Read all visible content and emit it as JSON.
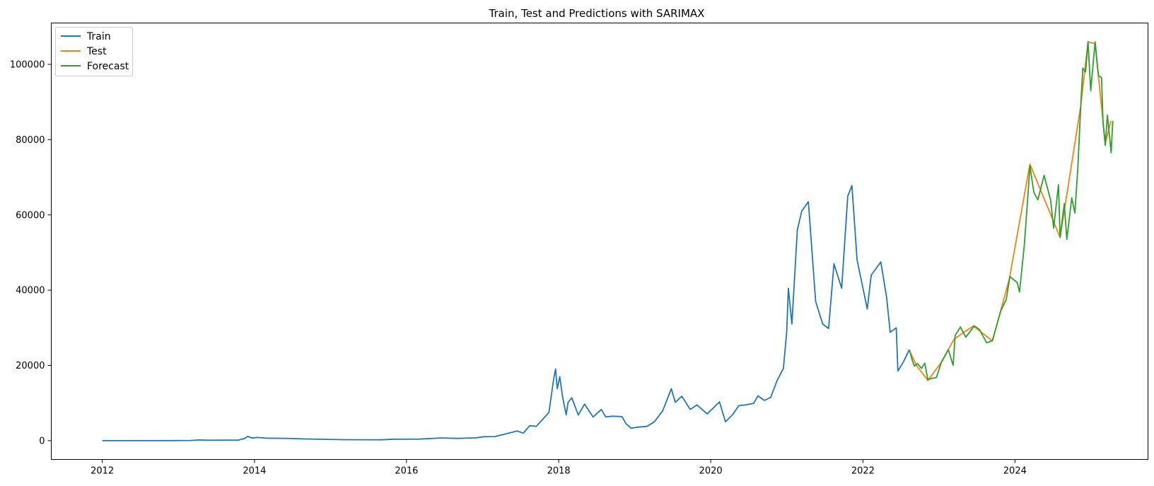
{
  "chart_data": {
    "type": "line",
    "title": "Train, Test and Predictions with SARIMAX",
    "xlabel": "",
    "ylabel": "",
    "xlim": [
      "2011-05-01",
      "2025-10-01"
    ],
    "ylim": [
      -5000,
      111000
    ],
    "x_ticks": [
      "2012",
      "2014",
      "2016",
      "2018",
      "2020",
      "2022",
      "2024"
    ],
    "y_ticks": [
      "0",
      "20000",
      "40000",
      "60000",
      "80000",
      "100000"
    ],
    "legend": {
      "position": "top-left",
      "entries": [
        "Train",
        "Test",
        "Forecast"
      ]
    },
    "grid": false,
    "series": [
      {
        "name": "Train",
        "color": "#1f77b4",
        "points": [
          [
            "2012-01-01",
            5
          ],
          [
            "2012-06-01",
            6
          ],
          [
            "2012-12-01",
            13
          ],
          [
            "2013-03-01",
            50
          ],
          [
            "2013-04-10",
            180
          ],
          [
            "2013-06-01",
            110
          ],
          [
            "2013-09-01",
            130
          ],
          [
            "2013-10-15",
            150
          ],
          [
            "2013-11-15",
            600
          ],
          [
            "2013-11-30",
            1150
          ],
          [
            "2013-12-20",
            700
          ],
          [
            "2014-01-15",
            850
          ],
          [
            "2014-03-01",
            650
          ],
          [
            "2014-06-01",
            620
          ],
          [
            "2014-09-01",
            450
          ],
          [
            "2014-12-01",
            350
          ],
          [
            "2015-03-01",
            260
          ],
          [
            "2015-06-01",
            240
          ],
          [
            "2015-09-01",
            230
          ],
          [
            "2015-11-05",
            400
          ],
          [
            "2015-12-01",
            380
          ],
          [
            "2016-03-01",
            420
          ],
          [
            "2016-06-15",
            720
          ],
          [
            "2016-09-01",
            600
          ],
          [
            "2016-12-01",
            760
          ],
          [
            "2017-01-05",
            1050
          ],
          [
            "2017-03-01",
            1100
          ],
          [
            "2017-05-20",
            2200
          ],
          [
            "2017-06-15",
            2600
          ],
          [
            "2017-07-15",
            2000
          ],
          [
            "2017-08-15",
            4000
          ],
          [
            "2017-09-15",
            3800
          ],
          [
            "2017-10-15",
            5600
          ],
          [
            "2017-11-15",
            7500
          ],
          [
            "2017-12-08",
            16500
          ],
          [
            "2017-12-17",
            19000
          ],
          [
            "2017-12-25",
            13800
          ],
          [
            "2018-01-06",
            17000
          ],
          [
            "2018-01-20",
            11500
          ],
          [
            "2018-02-06",
            6900
          ],
          [
            "2018-02-15",
            10200
          ],
          [
            "2018-03-05",
            11400
          ],
          [
            "2018-04-05",
            6800
          ],
          [
            "2018-05-05",
            9700
          ],
          [
            "2018-06-15",
            6300
          ],
          [
            "2018-07-25",
            8300
          ],
          [
            "2018-08-15",
            6300
          ],
          [
            "2018-09-15",
            6500
          ],
          [
            "2018-11-01",
            6400
          ],
          [
            "2018-11-20",
            4500
          ],
          [
            "2018-12-15",
            3300
          ],
          [
            "2019-01-15",
            3600
          ],
          [
            "2019-03-01",
            3800
          ],
          [
            "2019-04-05",
            5000
          ],
          [
            "2019-05-15",
            7900
          ],
          [
            "2019-06-26",
            13800
          ],
          [
            "2019-07-15",
            10200
          ],
          [
            "2019-08-15",
            11800
          ],
          [
            "2019-09-25",
            8300
          ],
          [
            "2019-10-27",
            9500
          ],
          [
            "2019-12-15",
            7100
          ],
          [
            "2020-02-12",
            10300
          ],
          [
            "2020-03-12",
            5000
          ],
          [
            "2020-04-15",
            6900
          ],
          [
            "2020-05-15",
            9300
          ],
          [
            "2020-06-15",
            9500
          ],
          [
            "2020-07-25",
            9900
          ],
          [
            "2020-08-15",
            11900
          ],
          [
            "2020-09-15",
            10700
          ],
          [
            "2020-10-15",
            11500
          ],
          [
            "2020-11-15",
            16000
          ],
          [
            "2020-12-15",
            19200
          ],
          [
            "2020-12-31",
            29000
          ],
          [
            "2021-01-08",
            40500
          ],
          [
            "2021-01-25",
            31000
          ],
          [
            "2021-02-20",
            56000
          ],
          [
            "2021-03-13",
            61000
          ],
          [
            "2021-04-14",
            63500
          ],
          [
            "2021-05-19",
            37000
          ],
          [
            "2021-06-22",
            31000
          ],
          [
            "2021-07-20",
            29800
          ],
          [
            "2021-08-15",
            47000
          ],
          [
            "2021-09-21",
            40500
          ],
          [
            "2021-10-20",
            65000
          ],
          [
            "2021-11-09",
            67800
          ],
          [
            "2021-12-04",
            48000
          ],
          [
            "2022-01-22",
            35000
          ],
          [
            "2022-02-10",
            44000
          ],
          [
            "2022-03-28",
            47500
          ],
          [
            "2022-04-25",
            38000
          ],
          [
            "2022-05-12",
            28800
          ],
          [
            "2022-06-10",
            30000
          ],
          [
            "2022-06-18",
            18500
          ],
          [
            "2022-07-15",
            21000
          ],
          [
            "2022-08-12",
            24200
          ]
        ]
      },
      {
        "name": "Test",
        "color": "#ff7f0e",
        "points": [
          [
            "2022-08-12",
            24000
          ],
          [
            "2022-09-15",
            20000
          ],
          [
            "2022-11-09",
            16000
          ],
          [
            "2023-01-15",
            21000
          ],
          [
            "2023-03-15",
            27000
          ],
          [
            "2023-06-15",
            30500
          ],
          [
            "2023-09-15",
            26500
          ],
          [
            "2023-12-05",
            43000
          ],
          [
            "2024-03-13",
            73500
          ],
          [
            "2024-08-05",
            54000
          ],
          [
            "2024-11-12",
            89000
          ],
          [
            "2024-12-17",
            106000
          ],
          [
            "2025-01-20",
            105500
          ],
          [
            "2025-03-10",
            79000
          ],
          [
            "2025-04-06",
            85000
          ]
        ]
      },
      {
        "name": "Forecast",
        "color": "#2ca02c",
        "points": [
          [
            "2022-08-12",
            24200
          ],
          [
            "2022-08-25",
            21500
          ],
          [
            "2022-09-05",
            19800
          ],
          [
            "2022-09-20",
            20500
          ],
          [
            "2022-10-10",
            19200
          ],
          [
            "2022-10-25",
            20600
          ],
          [
            "2022-11-09",
            16200
          ],
          [
            "2022-11-25",
            16500
          ],
          [
            "2022-12-20",
            16800
          ],
          [
            "2023-01-14",
            21000
          ],
          [
            "2023-02-15",
            24200
          ],
          [
            "2023-03-10",
            20000
          ],
          [
            "2023-03-20",
            28000
          ],
          [
            "2023-04-14",
            30200
          ],
          [
            "2023-05-10",
            27500
          ],
          [
            "2023-06-20",
            30500
          ],
          [
            "2023-07-15",
            29500
          ],
          [
            "2023-08-18",
            26000
          ],
          [
            "2023-09-15",
            26600
          ],
          [
            "2023-10-25",
            34500
          ],
          [
            "2023-11-20",
            37500
          ],
          [
            "2023-12-08",
            43600
          ],
          [
            "2024-01-12",
            42000
          ],
          [
            "2024-01-23",
            39500
          ],
          [
            "2024-02-15",
            52000
          ],
          [
            "2024-03-05",
            66500
          ],
          [
            "2024-03-13",
            73000
          ],
          [
            "2024-04-01",
            66000
          ],
          [
            "2024-04-20",
            64000
          ],
          [
            "2024-05-20",
            70500
          ],
          [
            "2024-06-20",
            64000
          ],
          [
            "2024-07-05",
            56500
          ],
          [
            "2024-07-28",
            68000
          ],
          [
            "2024-08-05",
            54000
          ],
          [
            "2024-08-25",
            63000
          ],
          [
            "2024-09-06",
            53500
          ],
          [
            "2024-09-30",
            64500
          ],
          [
            "2024-10-15",
            60500
          ],
          [
            "2024-10-29",
            72500
          ],
          [
            "2024-11-12",
            89000
          ],
          [
            "2024-11-22",
            99000
          ],
          [
            "2024-12-05",
            98000
          ],
          [
            "2024-12-17",
            106000
          ],
          [
            "2024-12-30",
            93000
          ],
          [
            "2025-01-20",
            106000
          ],
          [
            "2025-02-05",
            97000
          ],
          [
            "2025-02-20",
            96500
          ],
          [
            "2025-02-27",
            84500
          ],
          [
            "2025-03-10",
            78500
          ],
          [
            "2025-03-20",
            86500
          ],
          [
            "2025-04-07",
            76500
          ],
          [
            "2025-04-15",
            85000
          ]
        ]
      }
    ]
  }
}
